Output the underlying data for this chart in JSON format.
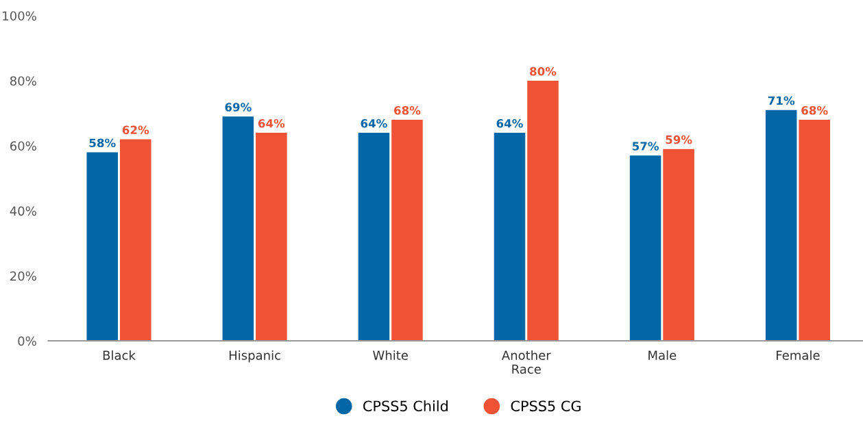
{
  "chart_data": {
    "type": "bar",
    "categories": [
      "Black",
      "Hispanic",
      "White",
      "Another\nRace",
      "Male",
      "Female"
    ],
    "series": [
      {
        "name": "CPSS5 Child",
        "color": "#0366a6",
        "values": [
          58,
          69,
          64,
          64,
          57,
          71
        ],
        "value_labels": [
          "58%",
          "69%",
          "64%",
          "64%",
          "57%",
          "71%"
        ]
      },
      {
        "name": "CPSS5 CG",
        "color": "#f05235",
        "values": [
          62,
          64,
          68,
          80,
          59,
          68
        ],
        "value_labels": [
          "62%",
          "64%",
          "68%",
          "80%",
          "59%",
          "68%"
        ]
      }
    ],
    "ylim": [
      0,
      100
    ],
    "yticks": [
      {
        "value": 0,
        "label": "0%"
      },
      {
        "value": 20,
        "label": "20%"
      },
      {
        "value": 40,
        "label": "40%"
      },
      {
        "value": 60,
        "label": "60%"
      },
      {
        "value": 80,
        "label": "80%"
      },
      {
        "value": 100,
        "label": "100%"
      }
    ],
    "grid": false,
    "legend": "bottom"
  }
}
